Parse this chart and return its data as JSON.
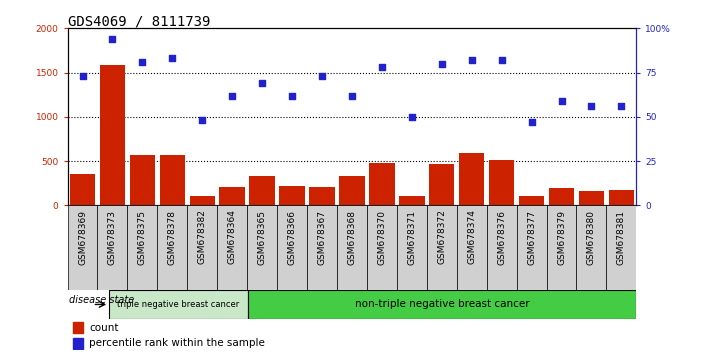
{
  "title": "GDS4069 / 8111739",
  "samples": [
    "GSM678369",
    "GSM678373",
    "GSM678375",
    "GSM678378",
    "GSM678382",
    "GSM678364",
    "GSM678365",
    "GSM678366",
    "GSM678367",
    "GSM678368",
    "GSM678370",
    "GSM678371",
    "GSM678372",
    "GSM678374",
    "GSM678376",
    "GSM678377",
    "GSM678379",
    "GSM678380",
    "GSM678381"
  ],
  "counts": [
    350,
    1580,
    570,
    570,
    110,
    210,
    330,
    220,
    210,
    330,
    480,
    110,
    470,
    590,
    510,
    110,
    200,
    160,
    170
  ],
  "percentiles": [
    73,
    94,
    81,
    83,
    48,
    62,
    69,
    62,
    73,
    62,
    78,
    50,
    80,
    82,
    82,
    47,
    59,
    56,
    56
  ],
  "group1_count": 5,
  "group2_count": 14,
  "group1_label": "triple negative breast cancer",
  "group2_label": "non-triple negative breast cancer",
  "bar_color": "#cc2200",
  "dot_color": "#2222cc",
  "ylim_left": [
    0,
    2000
  ],
  "ylim_right": [
    0,
    100
  ],
  "yticks_left": [
    0,
    500,
    1000,
    1500,
    2000
  ],
  "yticks_right": [
    0,
    25,
    50,
    75,
    100
  ],
  "ytick_labels_right": [
    "0",
    "25",
    "50",
    "75",
    "100%"
  ],
  "hlines": [
    500,
    1000,
    1500
  ],
  "legend_count_label": "count",
  "legend_pct_label": "percentile rank within the sample",
  "disease_state_label": "disease state",
  "bg_color_plot": "#ffffff",
  "bg_color_xticklabel": "#d0d0d0",
  "bg_color_group1": "#c8e8c8",
  "bg_color_group2": "#44cc44",
  "title_fontsize": 10,
  "tick_fontsize": 6.5,
  "label_fontsize": 7.5
}
